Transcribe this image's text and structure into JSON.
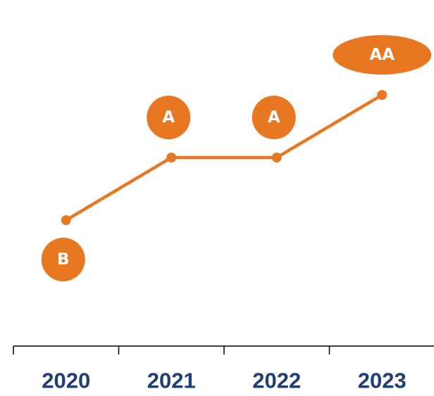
{
  "chart_data": {
    "type": "line",
    "categories": [
      "2020",
      "2021",
      "2022",
      "2023"
    ],
    "values": [
      1,
      2,
      2,
      3
    ],
    "value_labels": [
      "B",
      "A",
      "A",
      "AA"
    ],
    "color": "#e87722",
    "ylim": [
      0,
      4
    ]
  }
}
